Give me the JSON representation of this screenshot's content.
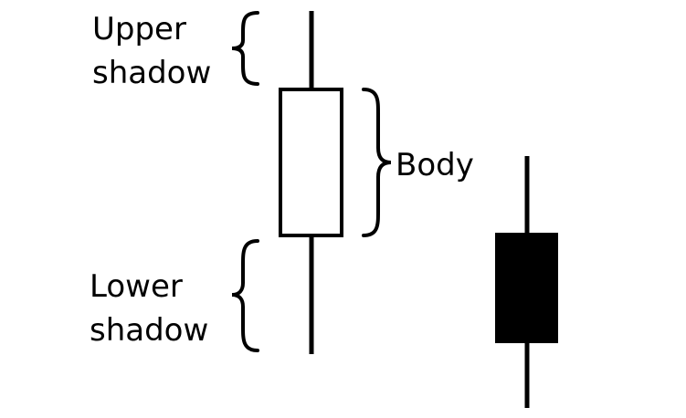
{
  "labels": {
    "upper_shadow_line1": "Upper",
    "upper_shadow_line2": "shadow",
    "body": "Body",
    "lower_shadow_line1": "Lower",
    "lower_shadow_line2": "shadow"
  },
  "colors": {
    "stroke": "#000000",
    "bullish_body_fill": "#ffffff",
    "bearish_body_fill": "#000000",
    "background": "#ffffff"
  }
}
